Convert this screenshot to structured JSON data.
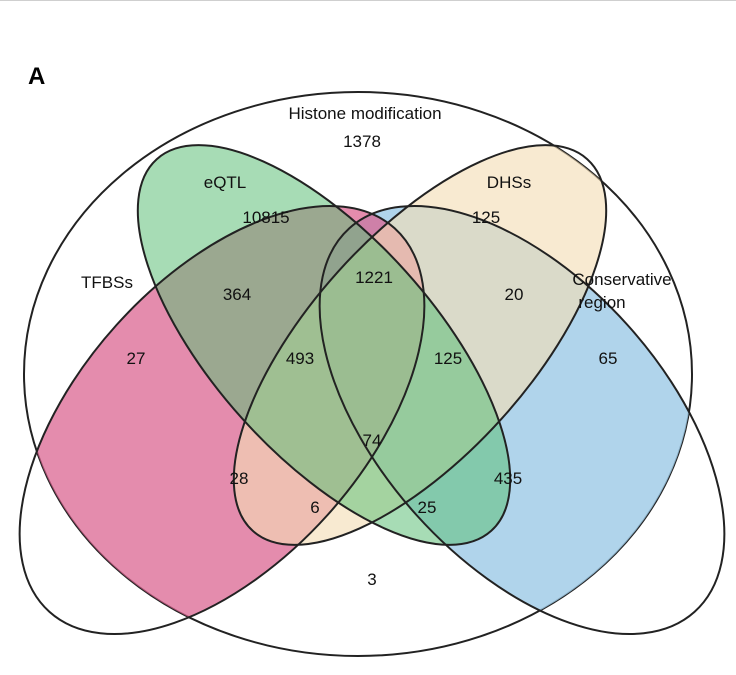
{
  "panel_label": "A",
  "sets": {
    "histone": {
      "name": "Histone modification",
      "color": "#ffffff"
    },
    "eqtl": {
      "name": "eQTL",
      "color": "#77c77e"
    },
    "dhs": {
      "name": "DHSs",
      "color": "#f3ddb5"
    },
    "tfbs": {
      "name": "TFBSs",
      "color": "#d95f8e"
    },
    "cons": {
      "name_line1": "Conservative",
      "name_line2": "region",
      "color": "#9fcbe6"
    }
  },
  "counts": {
    "histone_only": "1378",
    "eqtl_only": "10815",
    "dhs_only": "125",
    "tfbs_only": "27",
    "cons_only": "65",
    "tfbs_eqtl": "364",
    "eqtl_dhs": "1221",
    "dhs_cons": "20",
    "tfbs_eqtl_dhs": "493",
    "eqtl_dhs_cons": "125",
    "all_four": "74",
    "tfbs_dhs": "28",
    "eqtl_cons": "435",
    "tfbs_dhs_cons": "6",
    "tfbs_eqtl_cons": "25",
    "tfbs_cons": "3"
  }
}
